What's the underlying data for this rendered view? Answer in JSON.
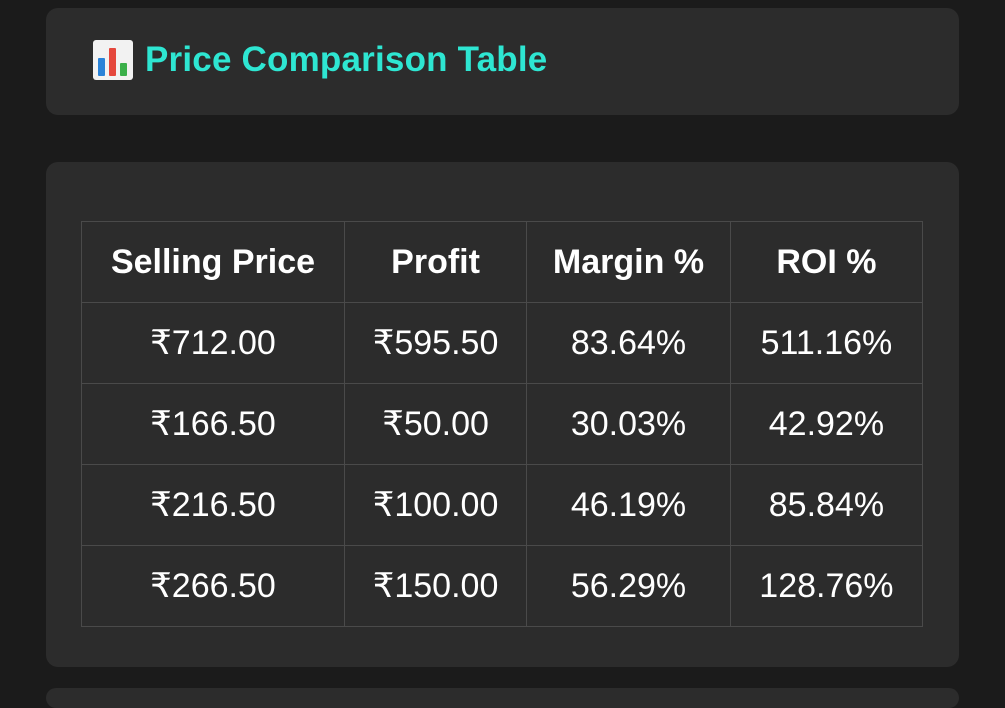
{
  "header": {
    "icon": "bar-chart-icon",
    "title": "Price Comparison Table",
    "title_color": "#2ee6d2"
  },
  "table": {
    "columns": [
      "Selling Price",
      "Profit",
      "Margin %",
      "ROI %"
    ],
    "rows": [
      [
        "₹712.00",
        "₹595.50",
        "83.64%",
        "511.16%"
      ],
      [
        "₹166.50",
        "₹50.00",
        "30.03%",
        "42.92%"
      ],
      [
        "₹216.50",
        "₹100.00",
        "46.19%",
        "85.84%"
      ],
      [
        "₹266.50",
        "₹150.00",
        "56.29%",
        "128.76%"
      ]
    ]
  }
}
